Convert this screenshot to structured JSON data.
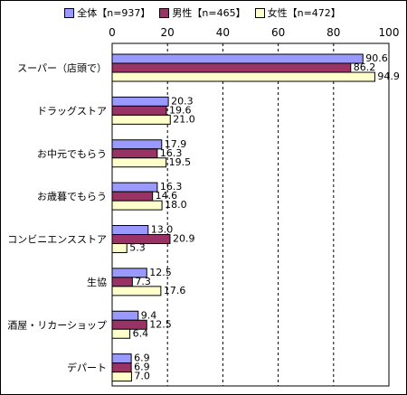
{
  "chart_data": {
    "type": "bar",
    "orientation": "horizontal",
    "categories": [
      "スーパー（店頭で）",
      "ドラッグストア",
      "お中元でもらう",
      "お歳暮でもらう",
      "コンビニエンスストア",
      "生協",
      "酒屋・リカーショップ",
      "デパート"
    ],
    "series": [
      {
        "name": "全体【n=937】",
        "color": "#9999ff",
        "values": [
          90.6,
          20.3,
          17.9,
          16.3,
          13.0,
          12.5,
          9.4,
          6.9
        ]
      },
      {
        "name": "男性【n=465】",
        "color": "#993366",
        "values": [
          86.2,
          19.6,
          16.3,
          14.6,
          20.9,
          7.3,
          12.5,
          6.9
        ]
      },
      {
        "name": "女性【n=472】",
        "color": "#ffffcc",
        "values": [
          94.9,
          21.0,
          19.5,
          18.0,
          5.3,
          17.6,
          6.4,
          7.0
        ]
      }
    ],
    "value_labels": [
      [
        "90.6",
        "20.3",
        "17.9",
        "16.3",
        "13.0",
        "12.5",
        "9.4",
        "6.9"
      ],
      [
        "86.2",
        "19.6",
        "16.3",
        "14.6",
        "20.9",
        "7.3",
        "12.5",
        "6.9"
      ],
      [
        "94.9",
        "21.0",
        "19.5",
        "18.0",
        "5.3",
        "17.6",
        "6.4",
        "7.0"
      ]
    ],
    "xlim": [
      0,
      100
    ],
    "ticks": [
      "0",
      "20",
      "40",
      "60",
      "80",
      "100"
    ],
    "grid": "vertical dashed",
    "legend_position": "top",
    "title": "",
    "xlabel": "",
    "ylabel": ""
  }
}
